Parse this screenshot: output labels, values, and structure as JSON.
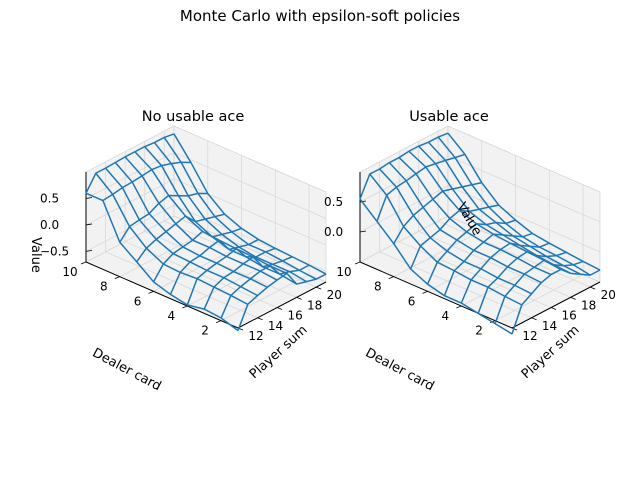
{
  "figure": {
    "title": "Monte Carlo with epsilon-soft policies"
  },
  "chart_data": [
    {
      "type": "surface-wireframe",
      "title": "No usable ace",
      "xlabel": "Dealer card",
      "ylabel": "Player sum",
      "zlabel": "Value",
      "dealer_card": [
        1,
        2,
        3,
        4,
        5,
        6,
        7,
        8,
        9,
        10
      ],
      "player_sum": [
        12,
        13,
        14,
        15,
        16,
        17,
        18,
        19,
        20,
        21
      ],
      "x_ticks": [
        "2",
        "4",
        "6",
        "8",
        "10"
      ],
      "y_ticks": [
        "12",
        "14",
        "16",
        "18",
        "20"
      ],
      "z_ticks": [
        "−0.5",
        "0.0",
        "0.5"
      ],
      "zlim": [
        -0.7,
        1.0
      ],
      "values": [
        [
          -0.75,
          -0.65,
          -0.62,
          -0.68,
          -0.62,
          -0.52,
          -0.28,
          -0.05,
          0.6,
          0.6
        ],
        [
          -0.35,
          -0.32,
          -0.3,
          -0.28,
          -0.3,
          -0.28,
          -0.12,
          0.15,
          0.62,
          0.88
        ],
        [
          -0.28,
          -0.25,
          -0.22,
          -0.22,
          -0.2,
          -0.18,
          -0.05,
          0.18,
          0.65,
          0.88
        ],
        [
          -0.22,
          -0.2,
          -0.2,
          -0.18,
          -0.18,
          -0.15,
          0.0,
          0.2,
          0.66,
          0.89
        ],
        [
          -0.18,
          -0.15,
          -0.15,
          -0.15,
          -0.12,
          -0.12,
          0.05,
          0.3,
          0.68,
          0.9
        ],
        [
          -0.15,
          -0.15,
          -0.12,
          -0.1,
          -0.08,
          -0.05,
          0.1,
          0.35,
          0.7,
          0.9
        ],
        [
          -0.45,
          -0.4,
          -0.4,
          -0.35,
          -0.35,
          -0.25,
          -0.1,
          0.25,
          0.68,
          0.9
        ],
        [
          -0.5,
          -0.45,
          -0.45,
          -0.45,
          -0.4,
          -0.3,
          -0.15,
          0.15,
          0.62,
          0.88
        ],
        [
          -0.55,
          -0.52,
          -0.48,
          -0.45,
          -0.45,
          -0.35,
          -0.2,
          0.1,
          0.55,
          0.88
        ],
        [
          -0.55,
          -0.52,
          -0.5,
          -0.48,
          -0.45,
          -0.38,
          -0.25,
          0.0,
          0.45,
          0.85
        ]
      ]
    },
    {
      "type": "surface-wireframe",
      "title": "Usable ace",
      "xlabel": "Dealer card",
      "ylabel": "Player sum",
      "zlabel": "Value",
      "dealer_card": [
        1,
        2,
        3,
        4,
        5,
        6,
        7,
        8,
        9,
        10
      ],
      "player_sum": [
        12,
        13,
        14,
        15,
        16,
        17,
        18,
        19,
        20,
        21
      ],
      "x_ticks": [
        "2",
        "4",
        "6",
        "8",
        "10"
      ],
      "y_ticks": [
        "12",
        "14",
        "16",
        "18",
        "20"
      ],
      "z_ticks": [
        "0.0",
        "0.5"
      ],
      "zlim": [
        -0.5,
        1.0
      ],
      "values": [
        [
          -0.6,
          -0.55,
          -0.5,
          -0.45,
          -0.45,
          -0.38,
          -0.25,
          0.05,
          0.3,
          0.55
        ],
        [
          -0.2,
          -0.18,
          -0.15,
          -0.15,
          -0.12,
          -0.1,
          0.05,
          0.25,
          0.65,
          0.88
        ],
        [
          -0.1,
          -0.08,
          -0.08,
          -0.05,
          -0.05,
          0.0,
          0.1,
          0.35,
          0.7,
          0.88
        ],
        [
          0.0,
          0.02,
          0.02,
          0.05,
          0.05,
          0.1,
          0.15,
          0.4,
          0.72,
          0.9
        ],
        [
          0.05,
          0.05,
          0.08,
          0.1,
          0.1,
          0.15,
          0.25,
          0.45,
          0.75,
          0.9
        ],
        [
          0.05,
          0.08,
          0.1,
          0.12,
          0.15,
          0.2,
          0.3,
          0.5,
          0.78,
          0.92
        ],
        [
          -0.1,
          -0.08,
          -0.05,
          0.0,
          0.05,
          0.1,
          0.2,
          0.45,
          0.75,
          0.92
        ],
        [
          -0.2,
          -0.18,
          -0.15,
          -0.1,
          -0.05,
          0.05,
          0.15,
          0.4,
          0.72,
          0.9
        ],
        [
          -0.3,
          -0.25,
          -0.22,
          -0.2,
          -0.15,
          -0.05,
          0.1,
          0.35,
          0.68,
          0.9
        ],
        [
          -0.3,
          -0.28,
          -0.25,
          -0.22,
          -0.18,
          -0.08,
          0.05,
          0.3,
          0.65,
          0.88
        ]
      ]
    }
  ]
}
